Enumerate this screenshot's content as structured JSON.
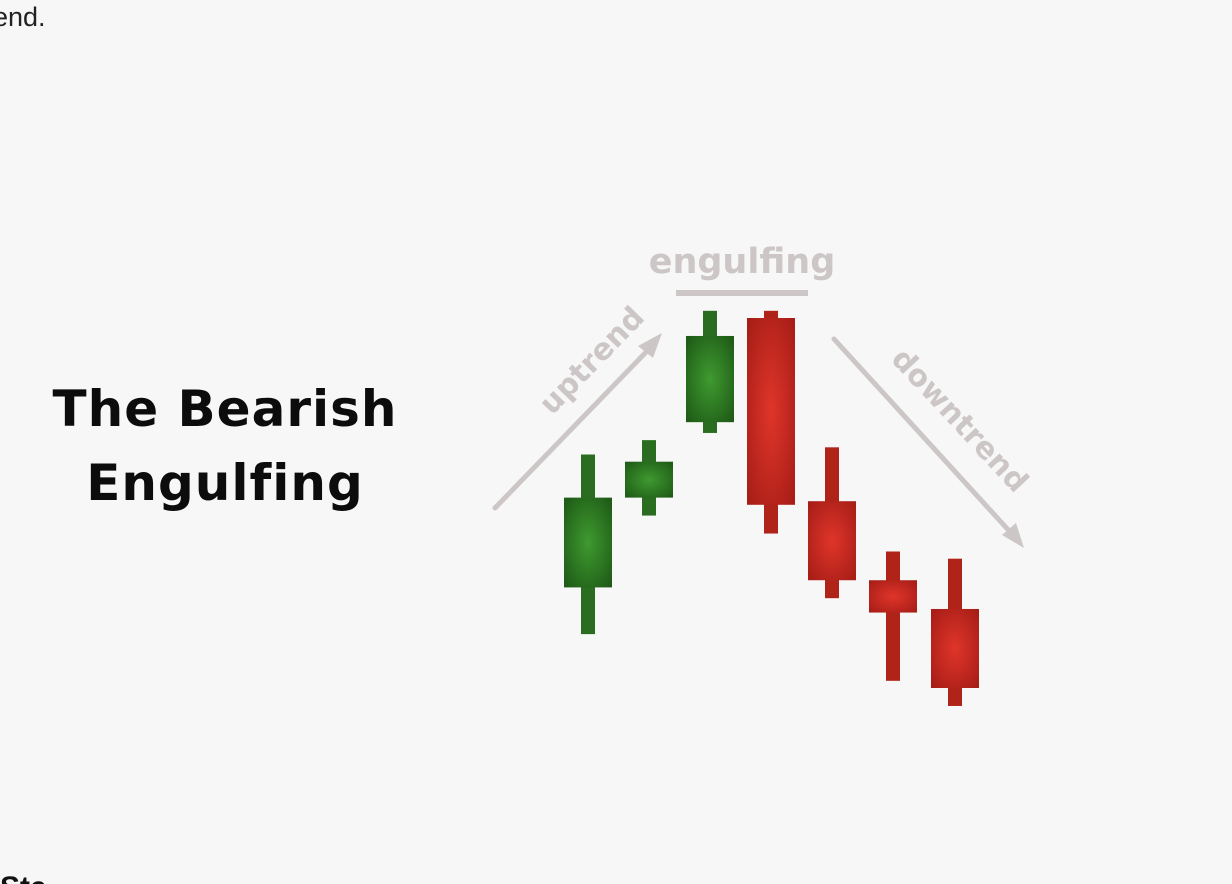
{
  "intro": {
    "text": "rend."
  },
  "figure": {
    "title_line1": "The Bearish",
    "title_line2": "Engulfing"
  },
  "colors": {
    "background": "#f7f7f7",
    "bullish": "#2e7d22",
    "bullish_dark": "#1f5c17",
    "bearish": "#d0281f",
    "bearish_dark": "#9e1c16",
    "annotation": "#cdc6c6"
  },
  "chart_data": {
    "type": "candlestick",
    "title": "The Bearish Engulfing",
    "annotations": {
      "uptrend_label": "uptrend",
      "engulfing_label": "engulfing",
      "downtrend_label": "downtrend"
    },
    "ylim": [
      0,
      100
    ],
    "candles": [
      {
        "name": "candle-1",
        "direction": "bull",
        "open": 25,
        "close": 50,
        "high": 62,
        "low": 12
      },
      {
        "name": "candle-2",
        "direction": "bull",
        "open": 50,
        "close": 60,
        "high": 66,
        "low": 45
      },
      {
        "name": "candle-3",
        "direction": "bull",
        "open": 71,
        "close": 95,
        "high": 102,
        "low": 68
      },
      {
        "name": "candle-4",
        "direction": "bear",
        "open": 100,
        "close": 48,
        "high": 102,
        "low": 40
      },
      {
        "name": "candle-5",
        "direction": "bear",
        "open": 49,
        "close": 27,
        "high": 64,
        "low": 22
      },
      {
        "name": "candle-6",
        "direction": "bear",
        "open": 27,
        "close": 18,
        "high": 35,
        "low": -1
      },
      {
        "name": "candle-7",
        "direction": "bear",
        "open": 19,
        "close": -3,
        "high": 33,
        "low": -8
      }
    ]
  },
  "bottom": {
    "partial_text": "Ste"
  }
}
